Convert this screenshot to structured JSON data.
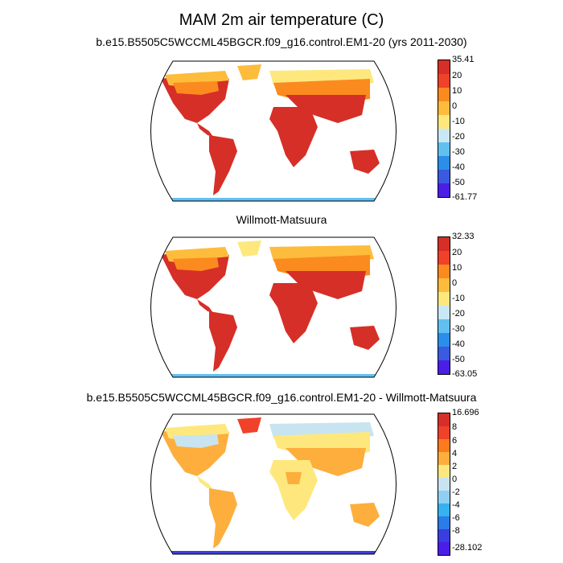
{
  "title": "MAM 2m air temperature (C)",
  "chart_data": [
    {
      "type": "heatmap",
      "title": "b.e15.B5505C5WCCML45BGCR.f09_g16.control.EM1-20 (yrs 2011-2030)",
      "projection": "Robinson world map",
      "colorbar": {
        "labels": [
          "35.41",
          "20",
          "10",
          "0",
          "-10",
          "-20",
          "-30",
          "-40",
          "-50",
          "-61.77"
        ],
        "colors": [
          "#d62f27",
          "#f0412a",
          "#fb8b1e",
          "#fdbc3c",
          "#fee87e",
          "#c9e8f7",
          "#62c0f0",
          "#2b8ee8",
          "#3a5ae0",
          "#4b1ee8"
        ]
      }
    },
    {
      "type": "heatmap",
      "title": "Willmott-Matsuura",
      "projection": "Robinson world map",
      "colorbar": {
        "labels": [
          "32.33",
          "20",
          "10",
          "0",
          "-10",
          "-20",
          "-30",
          "-40",
          "-50",
          "-63.05"
        ],
        "colors": [
          "#d62f27",
          "#f0412a",
          "#fb8b1e",
          "#fdbc3c",
          "#fee87e",
          "#c9e8f7",
          "#62c0f0",
          "#2b8ee8",
          "#3a5ae0",
          "#4b1ee8"
        ]
      }
    },
    {
      "type": "heatmap",
      "title": "b.e15.B5505C5WCCML45BGCR.f09_g16.control.EM1-20 - Willmott-Matsuura",
      "projection": "Robinson world map",
      "colorbar": {
        "labels": [
          "16.696",
          "8",
          "6",
          "4",
          "2",
          "0",
          "-2",
          "-4",
          "-6",
          "-8",
          "-28.102"
        ],
        "colors": [
          "#d62f27",
          "#f0412a",
          "#fb7b1e",
          "#fdae3c",
          "#fee87e",
          "#c8e4f0",
          "#8fd0f2",
          "#35b3f0",
          "#2b7be8",
          "#3a3ee0",
          "#4b1ee8"
        ]
      }
    }
  ]
}
